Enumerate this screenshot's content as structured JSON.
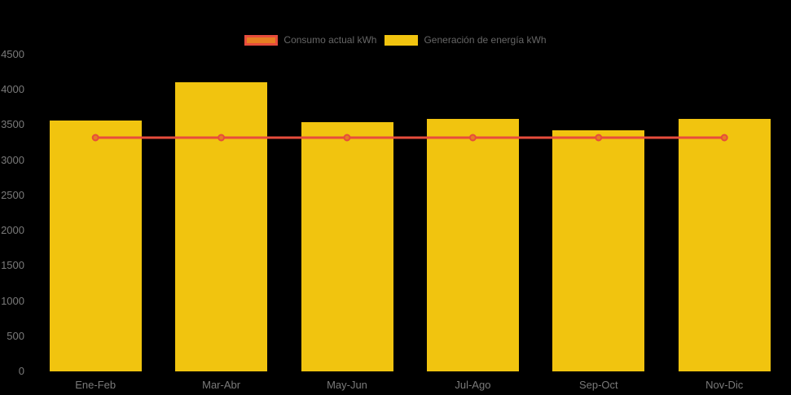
{
  "chart_data": {
    "type": "bar",
    "categories": [
      "Ene-Feb",
      "Mar-Abr",
      "May-Jun",
      "Jul-Ago",
      "Sep-Oct",
      "Nov-Dic"
    ],
    "series": [
      {
        "name": "Consumo actual kWh",
        "type": "line",
        "values": [
          3320,
          3320,
          3320,
          3320,
          3320,
          3320
        ],
        "line_color": "#E74C3C",
        "point_fill": "#E67E22",
        "point_border": "#E74C3C"
      },
      {
        "name": "Generación de energía kWh",
        "type": "bar",
        "values": [
          3560,
          4110,
          3540,
          3590,
          3420,
          3590
        ],
        "color": "#F1C40F"
      }
    ],
    "ylim": [
      0,
      4500
    ],
    "ytick_step": 500,
    "yticks": [
      0,
      500,
      1000,
      1500,
      2000,
      2500,
      3000,
      3500,
      4000,
      4500
    ],
    "xlabel": "",
    "ylabel": "",
    "grid": false,
    "legend_position": "top",
    "background_color": "#000000",
    "axis_text_color": "#7A7A7A",
    "legend_text_color": "#666666"
  }
}
